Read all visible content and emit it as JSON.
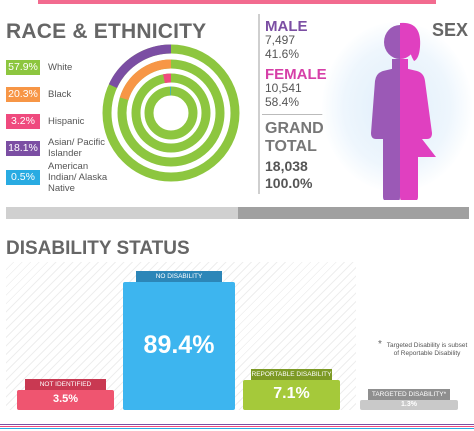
{
  "race": {
    "title": "RACE & ETHNICITY",
    "items": [
      {
        "pct": "57.9%",
        "label": "White",
        "value": 57.9,
        "color": "#8dc63f"
      },
      {
        "pct": "20.3%",
        "label": "Black",
        "value": 20.3,
        "color": "#f79646"
      },
      {
        "pct": "3.2%",
        "label": "Hispanic",
        "value": 3.2,
        "color": "#ef4a7e"
      },
      {
        "pct": "18.1%",
        "label": "Asian/ Pacific Islander",
        "value": 18.1,
        "color": "#7b4ea3"
      },
      {
        "pct": "0.5%",
        "label": "American Indian/ Alaska Native",
        "value": 0.5,
        "color": "#29abe2"
      }
    ]
  },
  "sex": {
    "title": "SEX",
    "male": {
      "title": "MALE",
      "count": "7,497",
      "pct": "41.6%",
      "color": "#7b4ea3"
    },
    "female": {
      "title": "FEMALE",
      "count": "10,541",
      "pct": "58.4%",
      "color": "#d63fa8"
    },
    "grand": {
      "title": "GRAND TOTAL",
      "count": "18,038",
      "pct": "100.0%"
    }
  },
  "divider_progress": 0.5,
  "disability": {
    "title": "DISABILITY STATUS",
    "bars": [
      {
        "tag": "NOT IDENTIFIED",
        "value_label": "3.5%",
        "value": 3.5,
        "color": "#ef5570",
        "tag_color": "#c93952"
      },
      {
        "tag": "NO DISABILITY",
        "value_label": "89.4%",
        "value": 89.4,
        "color": "#3db5ef",
        "tag_color": "#2c86b8"
      },
      {
        "tag": "REPORTABLE DISABILITY",
        "value_label": "7.1%",
        "value": 7.1,
        "color": "#a5c93a",
        "tag_color": "#7d9a25"
      },
      {
        "tag": "TARGETED DISABILITY*",
        "value_label": "1.3%",
        "value": 1.3,
        "color": "#c9c9c9",
        "tag_color": "#8f8f8f"
      }
    ],
    "note": "Targeted Disability is subset of Reportable Disability",
    "note_star": "*"
  },
  "chart_data": [
    {
      "type": "pie",
      "title": "RACE & ETHNICITY",
      "categories": [
        "White",
        "Black",
        "Hispanic",
        "Asian/ Pacific Islander",
        "American Indian/ Alaska Native"
      ],
      "values": [
        57.9,
        20.3,
        3.2,
        18.1,
        0.5
      ]
    },
    {
      "type": "bar",
      "title": "DISABILITY STATUS",
      "categories": [
        "NOT IDENTIFIED",
        "NO DISABILITY",
        "REPORTABLE DISABILITY",
        "TARGETED DISABILITY*"
      ],
      "values": [
        3.5,
        89.4,
        7.1,
        1.3
      ]
    }
  ],
  "colors": {
    "ring_track": "#8dc63f",
    "accent_pink": "#f26b8f",
    "male_fill": "#9b59b6",
    "female_fill": "#e040c0"
  }
}
